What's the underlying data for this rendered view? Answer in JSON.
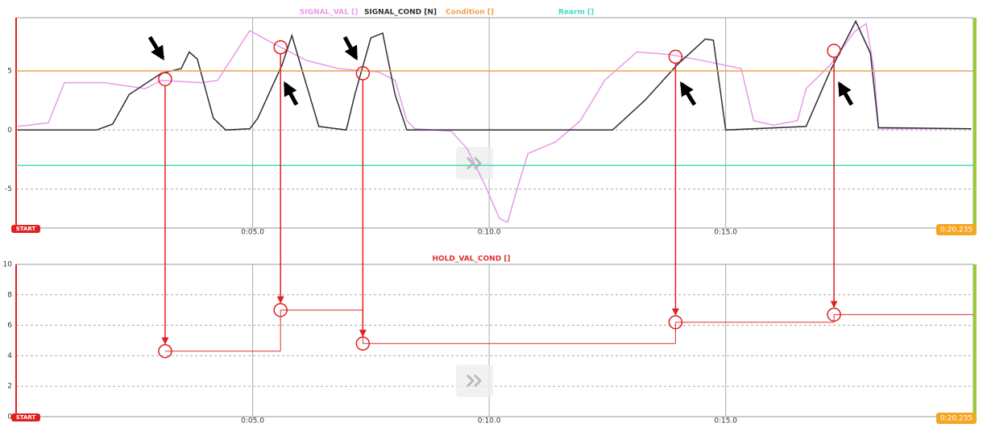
{
  "chart_data": [
    {
      "type": "line",
      "xlim": [
        0,
        20.235
      ],
      "xticks": [
        {
          "value": 0,
          "label": "START"
        },
        {
          "value": 5,
          "label": "0:05.0"
        },
        {
          "value": 10,
          "label": "0:10.0"
        },
        {
          "value": 15,
          "label": "0:15.0"
        },
        {
          "value": 20.235,
          "label": "0:20.235"
        }
      ],
      "ylim": [
        -8.3,
        9.5
      ],
      "yticks": [
        -5,
        0,
        5
      ],
      "grid": true,
      "series": [
        {
          "name": "SIGNAL_VAL []",
          "color": "#e89ae8",
          "x": [
            0.03,
            0.68,
            1.02,
            1.87,
            2.73,
            3.07,
            3.92,
            4.26,
            4.94,
            5.45,
            6.13,
            6.81,
            7.67,
            8.01,
            8.26,
            8.43,
            9.2,
            9.54,
            9.88,
            10.22,
            10.39,
            10.56,
            10.82,
            11.41,
            11.93,
            12.44,
            13.12,
            13.8,
            14.48,
            15.33,
            15.59,
            16.01,
            16.52,
            16.7,
            17.21,
            17.72,
            17.97,
            18.14,
            18.23,
            20.19
          ],
          "values": [
            0.3,
            0.6,
            4.0,
            4.0,
            3.5,
            4.2,
            4.0,
            4.2,
            8.4,
            7.3,
            5.9,
            5.2,
            4.9,
            4.2,
            0.8,
            0.1,
            -0.1,
            -1.6,
            -4.4,
            -7.5,
            -7.8,
            -5.4,
            -2.0,
            -1.0,
            0.8,
            4.2,
            6.6,
            6.4,
            5.9,
            5.2,
            0.8,
            0.4,
            0.8,
            3.5,
            5.5,
            8.3,
            9.0,
            5.0,
            0.1,
            0.1
          ]
        },
        {
          "name": "SIGNAL_COND [N]",
          "color": "#2e2e3a",
          "x": [
            0.03,
            1.7,
            2.04,
            2.39,
            3.07,
            3.49,
            3.66,
            3.83,
            4.17,
            4.43,
            4.94,
            5.11,
            5.45,
            5.62,
            5.83,
            6.05,
            6.4,
            6.98,
            7.16,
            7.5,
            7.75,
            8.01,
            8.26,
            12.61,
            13.29,
            13.97,
            14.57,
            14.74,
            15.0,
            16.7,
            17.21,
            17.75,
            18.06,
            18.23,
            20.19
          ],
          "values": [
            0,
            0,
            0.5,
            3.0,
            4.8,
            5.2,
            6.6,
            6.0,
            1.0,
            0,
            0.1,
            1.0,
            4.0,
            5.5,
            8.0,
            5.0,
            0.3,
            0,
            3.0,
            7.8,
            8.2,
            3.0,
            0,
            0,
            2.5,
            5.5,
            7.7,
            7.6,
            0,
            0.3,
            5.0,
            9.2,
            6.5,
            0.2,
            0.1
          ]
        },
        {
          "name": "Condition []",
          "color": "#f0a050",
          "x": [
            0,
            20.235
          ],
          "values": [
            5,
            5
          ]
        },
        {
          "name": "Rearm []",
          "color": "#40dcc0",
          "x": [
            0,
            20.235
          ],
          "values": [
            -3,
            -3
          ]
        }
      ]
    },
    {
      "type": "line",
      "xlim": [
        0,
        20.235
      ],
      "xticks": [
        {
          "value": 0,
          "label": "START"
        },
        {
          "value": 5,
          "label": "0:05.0"
        },
        {
          "value": 10,
          "label": "0:10.0"
        },
        {
          "value": 15,
          "label": "0:15.0"
        },
        {
          "value": 20.235,
          "label": "0:20.235"
        }
      ],
      "ylim": [
        0,
        10
      ],
      "yticks": [
        0,
        2,
        4,
        6,
        8,
        10
      ],
      "grid": true,
      "series": [
        {
          "name": "HOLD_VAL_COND []",
          "color": "#e03030",
          "step": "post",
          "x": [
            3.15,
            5.59,
            7.33,
            13.94,
            17.29
          ],
          "values": [
            4.3,
            7.0,
            4.8,
            6.2,
            6.7
          ]
        }
      ]
    }
  ]
}
